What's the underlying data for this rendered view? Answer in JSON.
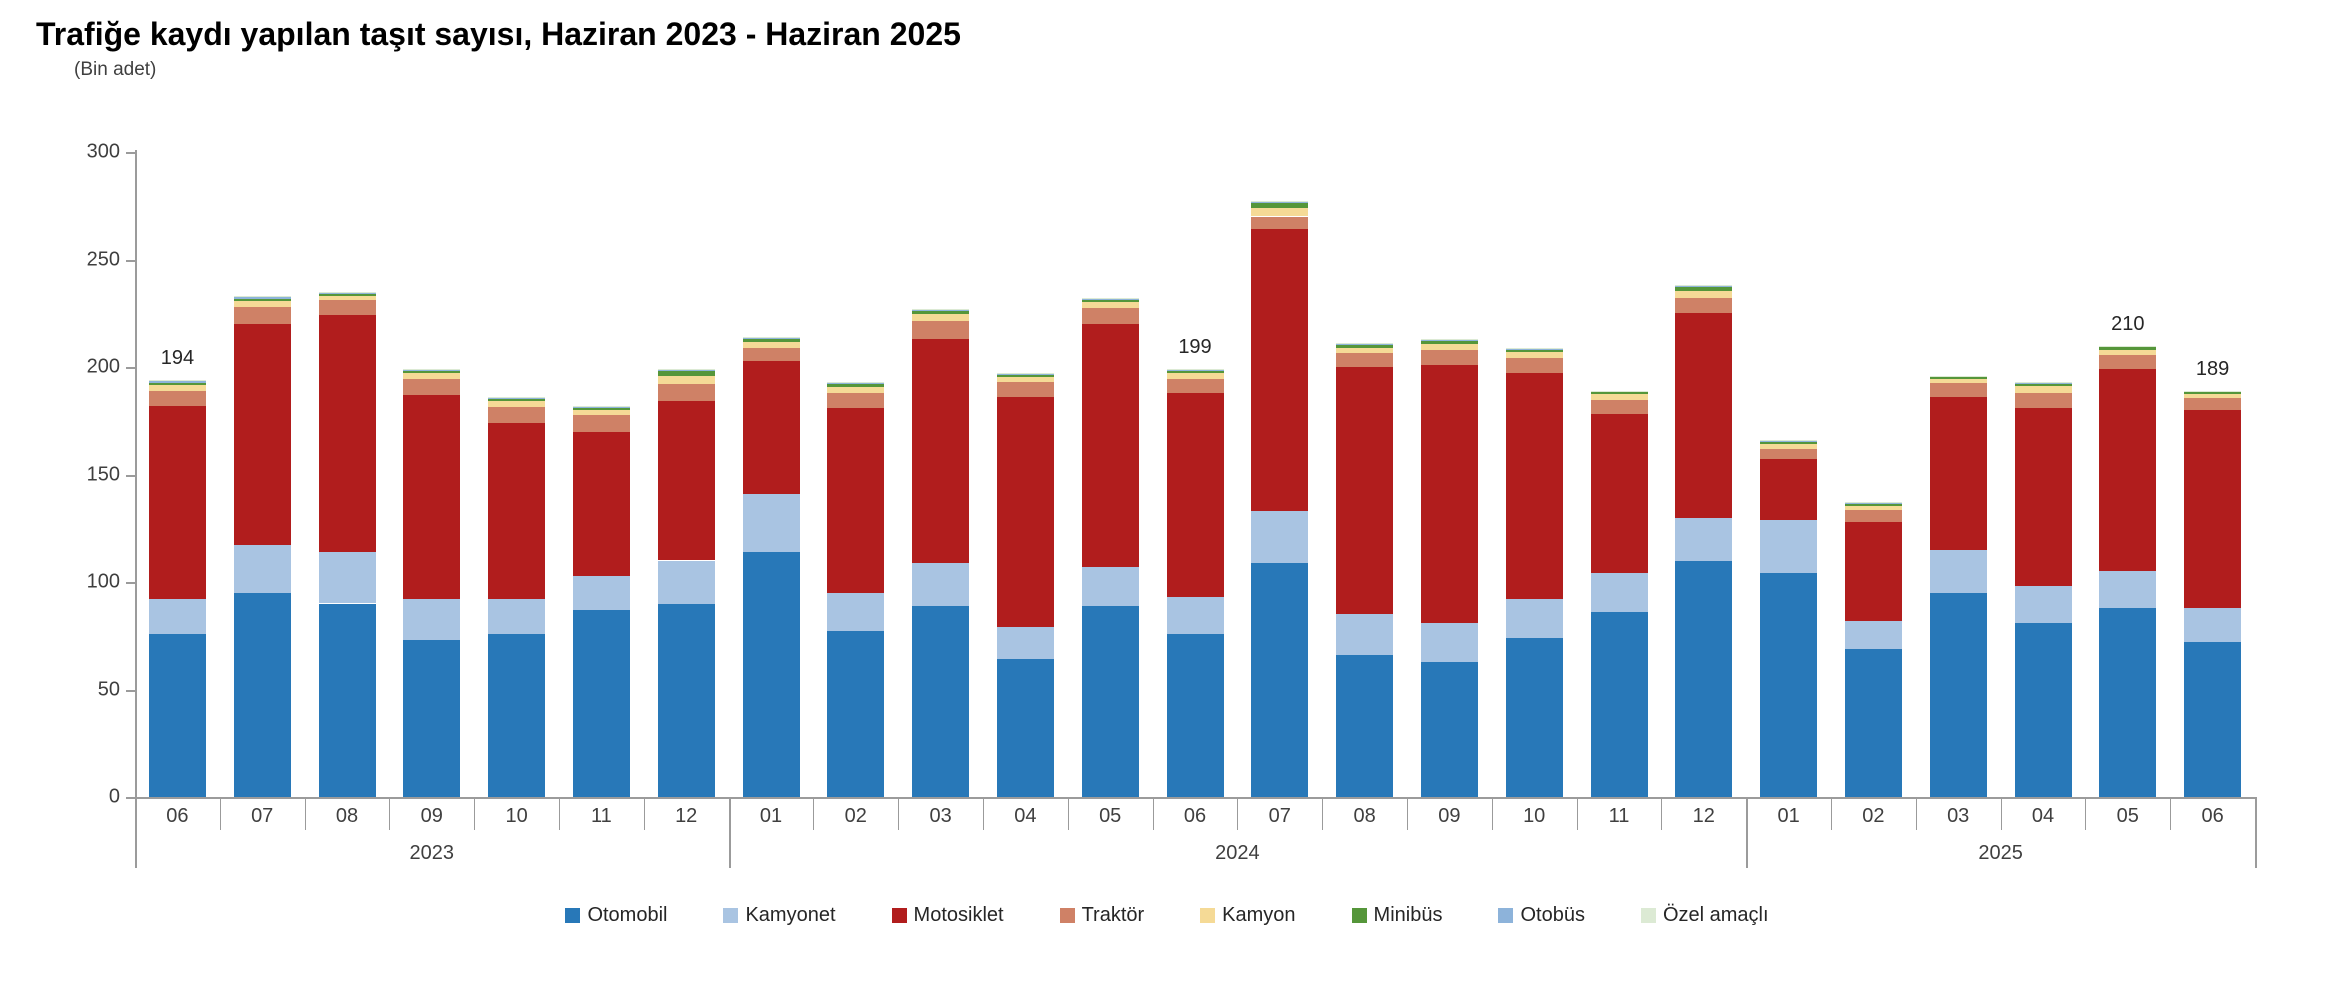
{
  "title": "Trafiğe kaydı yapılan taşıt sayısı, Haziran 2023 - Haziran 2025",
  "subtitle": "(Bin adet)",
  "chart_data": {
    "type": "bar",
    "stacked": true,
    "title": "Trafiğe kaydı yapılan taşıt sayısı, Haziran 2023 - Haziran 2025",
    "unit_label": "(Bin adet)",
    "ylabel": "",
    "xlabel": "",
    "ylim": [
      0,
      300
    ],
    "yticks": [
      0,
      50,
      100,
      150,
      200,
      250,
      300
    ],
    "grid": false,
    "legend_position": "bottom",
    "categories": [
      "06",
      "07",
      "08",
      "09",
      "10",
      "11",
      "12",
      "01",
      "02",
      "03",
      "04",
      "05",
      "06",
      "07",
      "08",
      "09",
      "10",
      "11",
      "12",
      "01",
      "02",
      "03",
      "04",
      "05",
      "06"
    ],
    "year_groups": [
      {
        "label": "2023",
        "count": 7
      },
      {
        "label": "2024",
        "count": 12
      },
      {
        "label": "2025",
        "count": 6
      }
    ],
    "series": [
      {
        "name": "Otomobil",
        "color": "#2878b8",
        "values": [
          76,
          95,
          90,
          73,
          76,
          87,
          90,
          114,
          77,
          89,
          64,
          89,
          76,
          109,
          66,
          63,
          74,
          86,
          110,
          104,
          69,
          95,
          81,
          88,
          72
        ]
      },
      {
        "name": "Kamyonet",
        "color": "#a9c4e2",
        "values": [
          16,
          22,
          24,
          19,
          16,
          16,
          20,
          27,
          18,
          20,
          15,
          18,
          17,
          24,
          19,
          18,
          18,
          18,
          20,
          25,
          13,
          20,
          17,
          17,
          16
        ]
      },
      {
        "name": "Motosiklet",
        "color": "#b11d1d",
        "values": [
          90,
          103,
          110,
          95,
          82,
          67,
          74,
          62,
          86,
          104,
          107,
          113,
          95,
          131,
          115,
          120,
          105,
          74,
          95,
          28,
          46,
          71,
          83,
          94,
          92
        ]
      },
      {
        "name": "Traktör",
        "color": "#cf8166",
        "values": [
          7,
          8,
          7,
          7.5,
          7.5,
          7.5,
          8,
          6,
          7,
          8.5,
          7,
          7.5,
          6.5,
          6,
          6.5,
          7,
          7,
          6.5,
          7,
          5,
          5.5,
          6.5,
          7,
          6.5,
          5.5
        ]
      },
      {
        "name": "Kamyon",
        "color": "#f5da96",
        "values": [
          2.5,
          2.5,
          2,
          2.5,
          2.6,
          2.6,
          4,
          2.5,
          2.5,
          3,
          2.2,
          2.6,
          2.5,
          4,
          2.5,
          2.5,
          3,
          2.8,
          3.5,
          2.2,
          2,
          2,
          3,
          2.5,
          2
        ]
      },
      {
        "name": "Minibüs",
        "color": "#55963a",
        "values": [
          1.2,
          1.3,
          1.1,
          1.1,
          1.1,
          1.1,
          2,
          1.5,
          1.5,
          1.5,
          1.2,
          1.2,
          1.2,
          2.2,
          1.3,
          1.8,
          1.3,
          1.1,
          1.7,
          1.1,
          1,
          1,
          1.4,
          1.2,
          1
        ]
      },
      {
        "name": "Otobüs",
        "color": "#8db3da",
        "values": [
          0.7,
          0.6,
          0.4,
          0.4,
          0.4,
          0.4,
          0.5,
          0.5,
          0.5,
          0.5,
          0.3,
          0.3,
          0.4,
          0.4,
          0.3,
          0.3,
          0.3,
          0.3,
          0.4,
          0.3,
          0.2,
          0.2,
          0.3,
          0.4,
          0.2
        ]
      },
      {
        "name": "Özel amaçlı",
        "color": "#dcead4",
        "values": [
          0.6,
          0.6,
          0.5,
          0.5,
          0.4,
          0.4,
          0.5,
          0.5,
          0.5,
          0.5,
          0.3,
          0.4,
          0.4,
          0.4,
          0.4,
          0.4,
          0.4,
          0.3,
          0.4,
          0.4,
          0.3,
          0.3,
          0.3,
          0.4,
          0.3
        ]
      }
    ],
    "bar_total_labels": [
      {
        "index": 0,
        "label": "194"
      },
      {
        "index": 12,
        "label": "199"
      },
      {
        "index": 23,
        "label": "210"
      },
      {
        "index": 24,
        "label": "189"
      }
    ]
  },
  "layout_colors": {
    "axis": "#9b9b9b",
    "text": "#3f3f3f",
    "background": "#ffffff"
  }
}
